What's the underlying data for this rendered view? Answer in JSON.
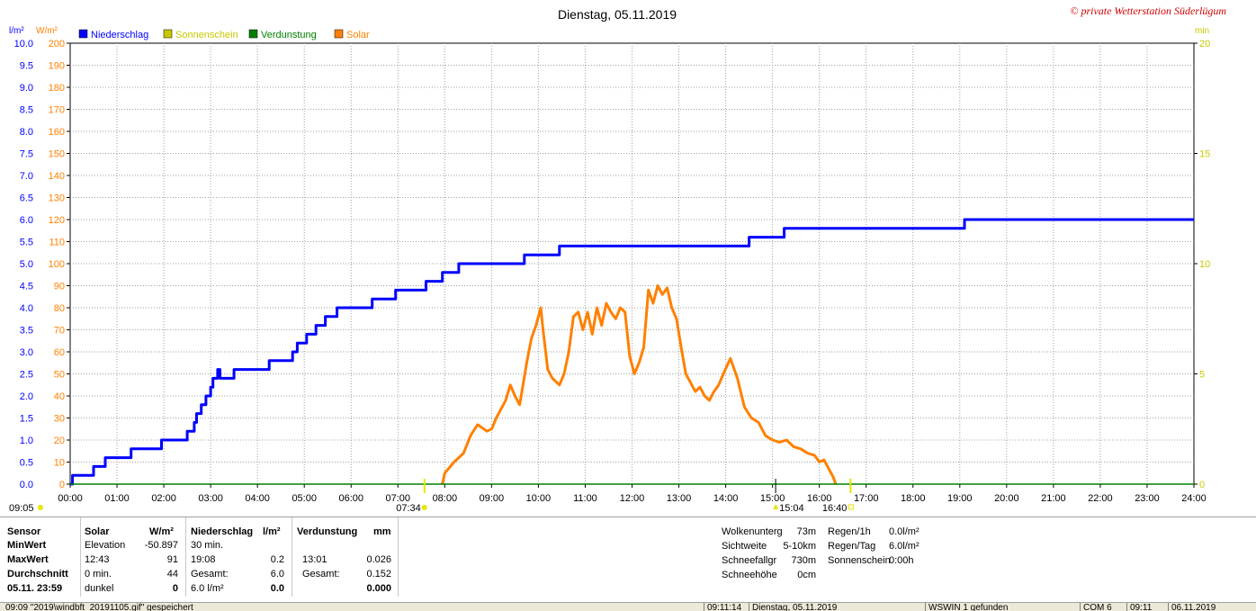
{
  "title": "Dienstag, 05.11.2019",
  "brand": "© private Wetterstation Süderlügum",
  "units": {
    "left1": "l/m²",
    "left2": "W/m²",
    "right": "min"
  },
  "legend": [
    {
      "label": "Niederschlag",
      "color": "#0000ff",
      "text_color": "#0000ff"
    },
    {
      "label": "Sonnenschein",
      "color": "#c8c800",
      "text_color": "#c8c800"
    },
    {
      "label": "Verdunstung",
      "color": "#008000",
      "text_color": "#008000"
    },
    {
      "label": "Solar",
      "color": "#ff8000",
      "text_color": "#ff8000"
    }
  ],
  "markers": {
    "left_start": "09:05",
    "sunrise": "07:34",
    "sunset": "16:40",
    "solar_end": "15:04"
  },
  "chart_data": {
    "type": "line",
    "x_range_hours": [
      0,
      24
    ],
    "x_ticks": [
      "00:00",
      "01:00",
      "02:00",
      "03:00",
      "04:00",
      "05:00",
      "06:00",
      "07:00",
      "08:00",
      "09:00",
      "10:00",
      "11:00",
      "12:00",
      "13:00",
      "14:00",
      "15:00",
      "16:00",
      "17:00",
      "18:00",
      "19:00",
      "20:00",
      "21:00",
      "22:00",
      "23:00",
      "24:00"
    ],
    "y_axes": {
      "precip": {
        "range": [
          0,
          10
        ],
        "ticks": [
          "0.0",
          "0.5",
          "1.0",
          "1.5",
          "2.0",
          "2.5",
          "3.0",
          "3.5",
          "4.0",
          "4.5",
          "5.0",
          "5.5",
          "6.0",
          "6.5",
          "7.0",
          "7.5",
          "8.0",
          "8.5",
          "9.0",
          "9.5",
          "10.0"
        ],
        "color": "#0000ff"
      },
      "solar": {
        "range": [
          0,
          200
        ],
        "ticks": [
          "0",
          "10",
          "20",
          "30",
          "40",
          "50",
          "60",
          "70",
          "80",
          "90",
          "100",
          "110",
          "120",
          "130",
          "140",
          "150",
          "160",
          "170",
          "180",
          "190",
          "200"
        ],
        "color": "#ff8000"
      },
      "minutes": {
        "range": [
          0,
          20
        ],
        "ticks": [
          "0",
          "5",
          "10",
          "15",
          "20"
        ],
        "color": "#c8c800"
      }
    },
    "grid": true,
    "series": [
      {
        "name": "Niederschlag",
        "axis": "precip",
        "color": "#0000ff",
        "step": true,
        "points": [
          [
            0.0,
            0.0
          ],
          [
            0.05,
            0.2
          ],
          [
            0.5,
            0.4
          ],
          [
            0.75,
            0.6
          ],
          [
            1.25,
            0.6
          ],
          [
            1.3,
            0.8
          ],
          [
            1.9,
            0.8
          ],
          [
            1.95,
            1.0
          ],
          [
            2.5,
            1.2
          ],
          [
            2.65,
            1.4
          ],
          [
            2.7,
            1.6
          ],
          [
            2.8,
            1.8
          ],
          [
            2.9,
            2.0
          ],
          [
            3.0,
            2.2
          ],
          [
            3.05,
            2.4
          ],
          [
            3.15,
            2.6
          ],
          [
            3.2,
            2.4
          ],
          [
            3.2,
            2.4
          ],
          [
            3.25,
            2.4
          ],
          [
            3.3,
            2.4
          ],
          [
            3.5,
            2.6
          ],
          [
            4.25,
            2.8
          ],
          [
            4.75,
            3.0
          ],
          [
            4.85,
            3.2
          ],
          [
            5.05,
            3.4
          ],
          [
            5.25,
            3.6
          ],
          [
            5.45,
            3.8
          ],
          [
            5.7,
            4.0
          ],
          [
            6.45,
            4.2
          ],
          [
            6.95,
            4.4
          ],
          [
            7.6,
            4.6
          ],
          [
            7.95,
            4.8
          ],
          [
            8.3,
            5.0
          ],
          [
            9.7,
            5.2
          ],
          [
            10.45,
            5.4
          ],
          [
            14.5,
            5.6
          ],
          [
            15.25,
            5.8
          ],
          [
            19.1,
            6.0
          ],
          [
            24.0,
            6.0
          ]
        ]
      },
      {
        "name": "Solar",
        "axis": "solar",
        "color": "#ff8000",
        "step": false,
        "points": [
          [
            7.95,
            0
          ],
          [
            8.0,
            5
          ],
          [
            8.2,
            10
          ],
          [
            8.4,
            14
          ],
          [
            8.55,
            22
          ],
          [
            8.7,
            27
          ],
          [
            8.9,
            24
          ],
          [
            9.0,
            25
          ],
          [
            9.1,
            30
          ],
          [
            9.3,
            38
          ],
          [
            9.4,
            45
          ],
          [
            9.5,
            40
          ],
          [
            9.6,
            36
          ],
          [
            9.75,
            55
          ],
          [
            9.85,
            66
          ],
          [
            9.95,
            72
          ],
          [
            10.05,
            80
          ],
          [
            10.1,
            70
          ],
          [
            10.2,
            52
          ],
          [
            10.3,
            48
          ],
          [
            10.45,
            45
          ],
          [
            10.55,
            50
          ],
          [
            10.65,
            60
          ],
          [
            10.75,
            76
          ],
          [
            10.85,
            78
          ],
          [
            10.95,
            70
          ],
          [
            11.05,
            78
          ],
          [
            11.15,
            68
          ],
          [
            11.25,
            80
          ],
          [
            11.35,
            72
          ],
          [
            11.45,
            82
          ],
          [
            11.55,
            78
          ],
          [
            11.65,
            75
          ],
          [
            11.75,
            80
          ],
          [
            11.85,
            78
          ],
          [
            11.95,
            58
          ],
          [
            12.05,
            50
          ],
          [
            12.15,
            55
          ],
          [
            12.25,
            62
          ],
          [
            12.35,
            88
          ],
          [
            12.45,
            82
          ],
          [
            12.55,
            90
          ],
          [
            12.65,
            86
          ],
          [
            12.75,
            89
          ],
          [
            12.85,
            80
          ],
          [
            12.95,
            75
          ],
          [
            13.05,
            62
          ],
          [
            13.15,
            50
          ],
          [
            13.25,
            46
          ],
          [
            13.35,
            42
          ],
          [
            13.45,
            44
          ],
          [
            13.55,
            40
          ],
          [
            13.65,
            38
          ],
          [
            13.75,
            42
          ],
          [
            13.85,
            45
          ],
          [
            13.95,
            50
          ],
          [
            14.1,
            57
          ],
          [
            14.25,
            48
          ],
          [
            14.4,
            35
          ],
          [
            14.55,
            30
          ],
          [
            14.7,
            28
          ],
          [
            14.85,
            22
          ],
          [
            15.0,
            20
          ],
          [
            15.15,
            19
          ],
          [
            15.3,
            20
          ],
          [
            15.45,
            17
          ],
          [
            15.6,
            16
          ],
          [
            15.75,
            14
          ],
          [
            15.9,
            13
          ],
          [
            16.0,
            10
          ],
          [
            16.1,
            11
          ],
          [
            16.2,
            7
          ],
          [
            16.3,
            3
          ],
          [
            16.35,
            0
          ]
        ]
      },
      {
        "name": "Verdunstung",
        "axis": "precip",
        "color": "#008000",
        "step": false,
        "points": [
          [
            0,
            0
          ],
          [
            24,
            0
          ]
        ]
      }
    ]
  },
  "panel": {
    "headers": {
      "sensor": "Sensor",
      "solar": "Solar",
      "solar_unit": "W/m²",
      "precip": "Niederschlag",
      "precip_unit": "l/m²",
      "evap": "Verdunstung",
      "evap_unit": "mm"
    },
    "rows": [
      {
        "label": "MinWert",
        "solar_time": "Elevation",
        "solar_val": "-50.897",
        "precip_time": "30 min.",
        "precip_val": "",
        "evap_time": "",
        "evap_val": ""
      },
      {
        "label": "MaxWert",
        "solar_time": "12:43",
        "solar_val": "91",
        "precip_time": "19:08",
        "precip_val": "0.2",
        "evap_time": "13:01",
        "evap_val": "0.026"
      },
      {
        "label": "Durchschnitt",
        "solar_time": "0 min.",
        "solar_val": "44",
        "precip_time": "Gesamt:",
        "precip_val": "6.0",
        "evap_time": "Gesamt:",
        "evap_val": "0.152"
      },
      {
        "label": "05.11. 23:59",
        "solar_time": "dunkel",
        "solar_val": "0",
        "precip_time": "6.0 l/m²",
        "precip_val": "0.0",
        "evap_time": "",
        "evap_val": "0.000"
      }
    ],
    "extra1": [
      {
        "label": "Wolkenunterg",
        "value": "73m"
      },
      {
        "label": "Sichtweite",
        "value": "5-10km"
      },
      {
        "label": "Schneefallgr",
        "value": "730m"
      },
      {
        "label": "Schneehöhe",
        "value": "0cm"
      }
    ],
    "extra2": [
      {
        "label": "Regen/1h",
        "value": "0.0l/m²"
      },
      {
        "label": "Regen/Tag",
        "value": "6.0l/m²"
      },
      {
        "label": "Sonnenschein",
        "value": "0:00h"
      }
    ]
  },
  "statusbar": {
    "message": "09:09 \"2019\\windbft_20191105.gif\" gespeichert",
    "time": "09:11:14",
    "date": "Dienstag, 05.11.2019",
    "device": "WSWIN 1 gefunden",
    "port": "COM 6",
    "clock": "09:11",
    "short_date": "06.11.2019"
  }
}
